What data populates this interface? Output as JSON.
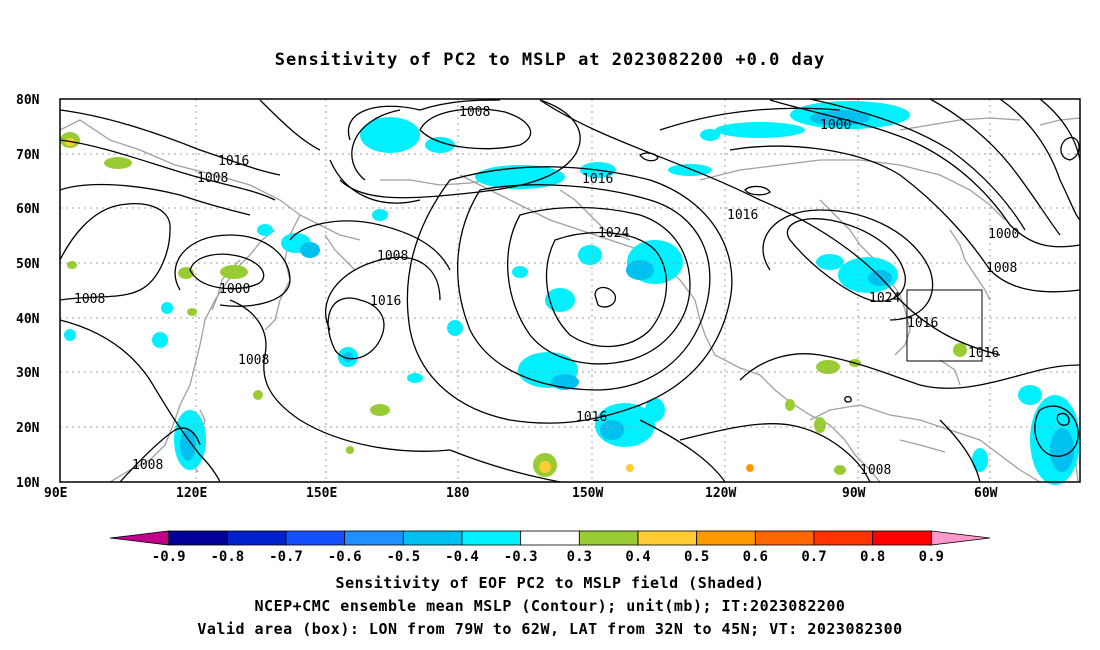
{
  "title": "Sensitivity of PC2 to MSLP at 2023082200 +0.0 day",
  "map": {
    "lat_labels": [
      "80N",
      "70N",
      "60N",
      "50N",
      "40N",
      "30N",
      "20N",
      "10N"
    ],
    "lon_labels": [
      "90E",
      "120E",
      "150E",
      "180",
      "150W",
      "120W",
      "90W",
      "60W"
    ],
    "isobar_labels": [
      "1008",
      "1016",
      "1008",
      "1000",
      "1008",
      "1008",
      "1016",
      "1008",
      "1008",
      "1016",
      "1024",
      "1016",
      "1016",
      "1000",
      "1000",
      "1008",
      "1024",
      "1016",
      "1016",
      "1008"
    ],
    "box": {
      "label": "Valid area (box)",
      "lon_from": "79W",
      "lon_to": "62W",
      "lat_from": "32N",
      "lat_to": "45N"
    }
  },
  "colorbar": {
    "labels": [
      "-0.9",
      "-0.8",
      "-0.7",
      "-0.6",
      "-0.5",
      "-0.4",
      "-0.3",
      "0.3",
      "0.4",
      "0.5",
      "0.6",
      "0.7",
      "0.8",
      "0.9"
    ],
    "colors": [
      "#c0008c",
      "#000099",
      "#0022cc",
      "#1550ff",
      "#1e90ff",
      "#00c0f0",
      "#00f0ff",
      "#ffffff",
      "#99cc33",
      "#ffcc33",
      "#ff9900",
      "#ff6600",
      "#ff3300",
      "#ff0000",
      "#ff99cc"
    ]
  },
  "footer": {
    "line1": "Sensitivity of EOF PC2 to MSLP field (Shaded)",
    "line2": "NCEP+CMC ensemble mean MSLP (Contour); unit(mb); IT:2023082200",
    "line3": "Valid area (box): LON from 79W to 62W, LAT from 32N to 45N; VT: 2023082300"
  }
}
